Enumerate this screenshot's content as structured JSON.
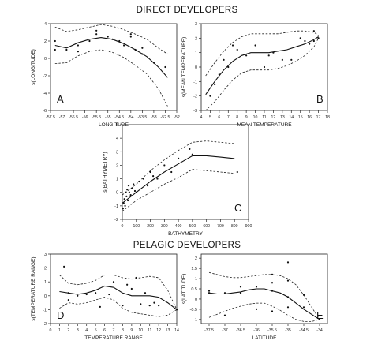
{
  "titles": {
    "direct": "DIRECT DEVELOPERS",
    "pelagic": "PELAGIC DEVELOPERS"
  },
  "chart_data": [
    {
      "panel": "A",
      "type": "line",
      "xlabel": "LONGITUDE",
      "ylabel": "s(LONGITUDE)",
      "xlim": [
        -57.5,
        -52
      ],
      "ylim": [
        -6,
        4
      ],
      "xticks": [
        -57.5,
        -57,
        -56.5,
        -56,
        -55.5,
        -55,
        -54.5,
        -54,
        -53.5,
        -53,
        -52.5,
        -52
      ],
      "xticklabels": [
        "-57.5",
        "-57",
        "-56.5",
        "-56",
        "-55.5",
        "-55",
        "-54.5",
        "-54",
        "-53.5",
        "-53",
        "-52.5",
        "-52"
      ],
      "yticks": [
        -6,
        -4,
        -2,
        0,
        2,
        4
      ],
      "yticklabels": [
        "-6",
        "-4",
        "-2",
        "0",
        "2",
        "4"
      ],
      "fit": {
        "x": [
          -57.3,
          -56.8,
          -56.3,
          -55.8,
          -55.3,
          -54.8,
          -54.3,
          -53.8,
          -53.3,
          -52.8,
          -52.4
        ],
        "y": [
          1.5,
          1.2,
          1.8,
          2.2,
          2.4,
          2.2,
          1.7,
          1.0,
          0.2,
          -1.0,
          -2.2
        ]
      },
      "upper": {
        "x": [
          -57.3,
          -56.8,
          -56.3,
          -55.8,
          -55.3,
          -54.8,
          -54.3,
          -53.8,
          -53.3,
          -52.8,
          -52.4
        ],
        "y": [
          3.6,
          3.1,
          3.3,
          3.6,
          3.9,
          3.7,
          3.3,
          2.8,
          2.2,
          1.2,
          0.5
        ]
      },
      "lower": {
        "x": [
          -57.3,
          -56.8,
          -56.3,
          -55.8,
          -55.3,
          -54.8,
          -54.3,
          -53.8,
          -53.3,
          -52.8,
          -52.4
        ],
        "y": [
          -0.6,
          -0.5,
          0.3,
          0.8,
          1.0,
          0.7,
          0.1,
          -0.8,
          -1.8,
          -3.5,
          -5.5
        ]
      },
      "points": {
        "x": [
          -57.3,
          -57.3,
          -56.8,
          -56.3,
          -56.3,
          -55.8,
          -55.5,
          -55.5,
          -55.0,
          -54.8,
          -54.5,
          -54.3,
          -54.0,
          -54.0,
          -53.8,
          -53.5,
          -53.5,
          -53.0,
          -52.5
        ],
        "y": [
          2.0,
          1.0,
          1.0,
          1.5,
          0.8,
          2.0,
          2.8,
          3.2,
          2.5,
          2.2,
          2.0,
          1.5,
          2.8,
          2.5,
          1.0,
          0.5,
          1.2,
          -0.5,
          -1.0
        ]
      }
    },
    {
      "panel": "B",
      "type": "line",
      "xlabel": "MEAN TEMPERATURE",
      "ylabel": "s(MEAN TEMPERATURE)",
      "xlim": [
        4,
        18
      ],
      "ylim": [
        -3,
        3
      ],
      "xticks": [
        4,
        5,
        6,
        7,
        8,
        9,
        10,
        11,
        12,
        13,
        14,
        15,
        16,
        17,
        18
      ],
      "xticklabels": [
        "4",
        "5",
        "6",
        "7",
        "8",
        "9",
        "10",
        "11",
        "12",
        "13",
        "14",
        "15",
        "16",
        "17",
        "18"
      ],
      "yticks": [
        -3,
        -2,
        -1,
        0,
        1,
        2,
        3
      ],
      "yticklabels": [
        "-3",
        "-2",
        "-1",
        "0",
        "1",
        "2",
        "3"
      ],
      "fit": {
        "x": [
          4.5,
          5.5,
          6.5,
          7.5,
          8.5,
          9.5,
          10.5,
          11.5,
          12.5,
          13.5,
          14.5,
          15.5,
          16.5,
          17.0
        ],
        "y": [
          -1.9,
          -1.0,
          -0.2,
          0.4,
          0.8,
          1.0,
          1.0,
          1.0,
          1.1,
          1.2,
          1.4,
          1.6,
          1.9,
          2.1
        ]
      },
      "upper": {
        "x": [
          4.5,
          5.5,
          6.5,
          7.5,
          8.5,
          9.5,
          10.5,
          11.5,
          12.5,
          13.5,
          14.5,
          15.5,
          16.5,
          17.0
        ],
        "y": [
          -0.6,
          0.3,
          1.1,
          1.7,
          2.1,
          2.3,
          2.3,
          2.3,
          2.3,
          2.4,
          2.5,
          2.5,
          2.4,
          2.2
        ]
      },
      "lower": {
        "x": [
          4.5,
          5.5,
          6.5,
          7.5,
          8.5,
          9.5,
          10.5,
          11.5,
          12.5,
          13.5,
          14.5,
          15.5,
          16.5,
          17.0
        ],
        "y": [
          -3.0,
          -2.4,
          -1.6,
          -0.9,
          -0.4,
          -0.2,
          -0.2,
          -0.2,
          -0.1,
          0.1,
          0.4,
          0.8,
          1.4,
          2.0
        ]
      },
      "points": {
        "x": [
          5.0,
          5.5,
          6.0,
          6.5,
          7.0,
          7.5,
          8.0,
          9.0,
          10.0,
          11.0,
          11.5,
          12.0,
          13.0,
          14.0,
          15.0,
          15.5,
          16.0,
          16.5,
          16.5,
          17.0
        ],
        "y": [
          -2.0,
          -1.2,
          -0.5,
          0.5,
          0.0,
          1.5,
          1.2,
          0.8,
          1.5,
          0.0,
          0.8,
          1.0,
          0.5,
          0.5,
          2.0,
          1.8,
          1.6,
          2.5,
          1.8,
          2.0
        ]
      }
    },
    {
      "panel": "C",
      "type": "line",
      "xlabel": "BATHYMETRY",
      "ylabel": "s(BATHYMETRY)",
      "xlim": [
        0,
        900
      ],
      "ylim": [
        -2,
        5
      ],
      "xticks": [
        0,
        100,
        200,
        300,
        400,
        500,
        600,
        700,
        800,
        900
      ],
      "xticklabels": [
        "0",
        "100",
        "200",
        "300",
        "400",
        "500",
        "600",
        "700",
        "800",
        "900"
      ],
      "yticks": [
        -2,
        -1,
        0,
        1,
        2,
        3,
        4,
        5
      ],
      "yticklabels": [
        "-2",
        "-1",
        "0",
        "1",
        "2",
        "3",
        "4",
        "5"
      ],
      "fit": {
        "x": [
          0,
          50,
          100,
          200,
          300,
          400,
          500,
          600,
          700,
          800
        ],
        "y": [
          -0.8,
          -0.4,
          0.0,
          0.8,
          1.5,
          2.1,
          2.7,
          2.7,
          2.6,
          2.5
        ]
      },
      "upper": {
        "x": [
          0,
          50,
          100,
          200,
          300,
          400,
          500,
          600,
          700,
          800
        ],
        "y": [
          -0.2,
          0.2,
          0.6,
          1.6,
          2.4,
          3.1,
          3.7,
          3.8,
          3.7,
          3.6
        ]
      },
      "lower": {
        "x": [
          0,
          50,
          100,
          200,
          300,
          400,
          500,
          600,
          700,
          800
        ],
        "y": [
          -1.4,
          -1.0,
          -0.6,
          0.0,
          0.6,
          1.1,
          1.7,
          1.6,
          1.5,
          1.4
        ]
      },
      "points": {
        "x": [
          5,
          10,
          15,
          20,
          25,
          30,
          35,
          40,
          45,
          50,
          60,
          70,
          80,
          90,
          100,
          120,
          150,
          180,
          200,
          220,
          250,
          300,
          350,
          400,
          480,
          500,
          820
        ],
        "y": [
          -1.2,
          -0.8,
          -0.5,
          -1.0,
          0.0,
          -0.3,
          0.2,
          -0.6,
          0.5,
          0.0,
          -0.2,
          0.3,
          0.6,
          0.1,
          0.0,
          0.8,
          1.0,
          0.5,
          1.5,
          1.2,
          1.0,
          2.0,
          1.5,
          2.5,
          3.2,
          2.8,
          1.5
        ]
      }
    },
    {
      "panel": "D",
      "type": "line",
      "xlabel": "TEMPERATURE RANGE",
      "ylabel": "s(TEMPERATURE RANGE)",
      "xlim": [
        0,
        14
      ],
      "ylim": [
        -2,
        3
      ],
      "xticks": [
        0,
        1,
        2,
        3,
        4,
        5,
        6,
        7,
        8,
        9,
        10,
        11,
        12,
        13,
        14
      ],
      "xticklabels": [
        "0",
        "1",
        "2",
        "3",
        "4",
        "5",
        "6",
        "7",
        "8",
        "9",
        "10",
        "11",
        "12",
        "13",
        "14"
      ],
      "yticks": [
        -2,
        -1,
        0,
        1,
        2,
        3
      ],
      "yticklabels": [
        "-2",
        "-1",
        "0",
        "1",
        "2",
        "3"
      ],
      "fit": {
        "x": [
          1,
          2,
          3,
          4,
          5,
          6,
          7,
          8,
          9,
          10,
          11,
          12,
          13,
          14
        ],
        "y": [
          0.3,
          0.2,
          0.1,
          0.2,
          0.4,
          0.7,
          0.6,
          0.2,
          0.0,
          0.0,
          0.0,
          -0.1,
          -0.5,
          -1.0
        ]
      },
      "upper": {
        "x": [
          1,
          2,
          3,
          4,
          5,
          6,
          7,
          8,
          9,
          10,
          11,
          12,
          13,
          14
        ],
        "y": [
          1.5,
          0.9,
          0.8,
          0.9,
          1.1,
          1.5,
          1.5,
          1.3,
          1.2,
          1.3,
          1.4,
          1.3,
          0.4,
          -1.0
        ]
      },
      "lower": {
        "x": [
          1,
          2,
          3,
          4,
          5,
          6,
          7,
          8,
          9,
          10,
          11,
          12,
          13,
          14
        ],
        "y": [
          -0.9,
          -0.5,
          -0.6,
          -0.5,
          -0.3,
          -0.1,
          -0.3,
          -0.9,
          -1.2,
          -1.3,
          -1.4,
          -1.5,
          -1.4,
          -1.0
        ]
      },
      "points": {
        "x": [
          1.5,
          2.0,
          2.0,
          3.0,
          4.0,
          5.0,
          5.5,
          6.5,
          7.0,
          8.0,
          8.5,
          9.0,
          9.5,
          10.0,
          10.5,
          11.0,
          11.5,
          12.0,
          14.0
        ],
        "y": [
          2.1,
          0.2,
          -0.3,
          0.0,
          0.1,
          0.2,
          -0.8,
          0.1,
          1.0,
          -0.7,
          0.8,
          0.5,
          1.3,
          -0.6,
          0.2,
          -0.7,
          -0.5,
          -0.7,
          -1.0
        ]
      }
    },
    {
      "panel": "E",
      "type": "line",
      "xlabel": "LATITUDE",
      "ylabel": "s(LATITUDE)",
      "xlim": [
        -37.75,
        -33.75
      ],
      "ylim": [
        -1.2,
        2.2
      ],
      "xticks": [
        -37.5,
        -37,
        -36.5,
        -36,
        -35.5,
        -35,
        -34.5,
        -34
      ],
      "xticklabels": [
        "-37.5",
        "-37",
        "-36.5",
        "-36",
        "-35.5",
        "-35",
        "-34.5",
        "-34"
      ],
      "yticks": [
        -1,
        -0.5,
        0,
        0.5,
        1,
        1.5,
        2
      ],
      "yticklabels": [
        "-1",
        "-0.5",
        "0",
        "0.5",
        "1",
        "1.5",
        "2"
      ],
      "fit": {
        "x": [
          -37.5,
          -37.25,
          -37.0,
          -36.75,
          -36.5,
          -36.25,
          -36.0,
          -35.75,
          -35.5,
          -35.25,
          -35.0,
          -34.75,
          -34.5,
          -34.25,
          -34.0
        ],
        "y": [
          0.3,
          0.25,
          0.25,
          0.3,
          0.35,
          0.45,
          0.5,
          0.5,
          0.4,
          0.3,
          0.1,
          -0.2,
          -0.5,
          -0.75,
          -1.0
        ]
      },
      "upper": {
        "x": [
          -37.5,
          -37.25,
          -37.0,
          -36.75,
          -36.5,
          -36.25,
          -36.0,
          -35.75,
          -35.5,
          -35.25,
          -35.0,
          -34.75,
          -34.5,
          -34.25,
          -34.0
        ],
        "y": [
          1.3,
          1.2,
          1.1,
          1.05,
          1.05,
          1.1,
          1.15,
          1.2,
          1.2,
          1.15,
          1.0,
          0.7,
          0.2,
          -0.4,
          -1.0
        ]
      },
      "lower": {
        "x": [
          -37.5,
          -37.25,
          -37.0,
          -36.75,
          -36.5,
          -36.25,
          -36.0,
          -35.75,
          -35.5,
          -35.25,
          -35.0,
          -34.75,
          -34.5,
          -34.25,
          -34.0
        ],
        "y": [
          -0.9,
          -0.75,
          -0.6,
          -0.45,
          -0.35,
          -0.25,
          -0.2,
          -0.2,
          -0.35,
          -0.55,
          -0.8,
          -1.0,
          -1.1,
          -1.1,
          -1.0
        ]
      },
      "points": {
        "x": [
          -37.5,
          -37.5,
          -37.0,
          -37.0,
          -36.5,
          -36.5,
          -36.0,
          -36.0,
          -35.5,
          -35.5,
          -35.5,
          -35.5,
          -35.0,
          -35.0,
          -35.0,
          -35.0,
          -34.5,
          -34.5,
          -34.0
        ],
        "y": [
          0.4,
          0.3,
          0.3,
          -0.8,
          0.6,
          0.3,
          0.6,
          -0.5,
          1.2,
          0.8,
          0.4,
          -0.6,
          1.8,
          0.9,
          0.1,
          -0.4,
          0.2,
          -0.4,
          -1.0
        ]
      }
    }
  ]
}
